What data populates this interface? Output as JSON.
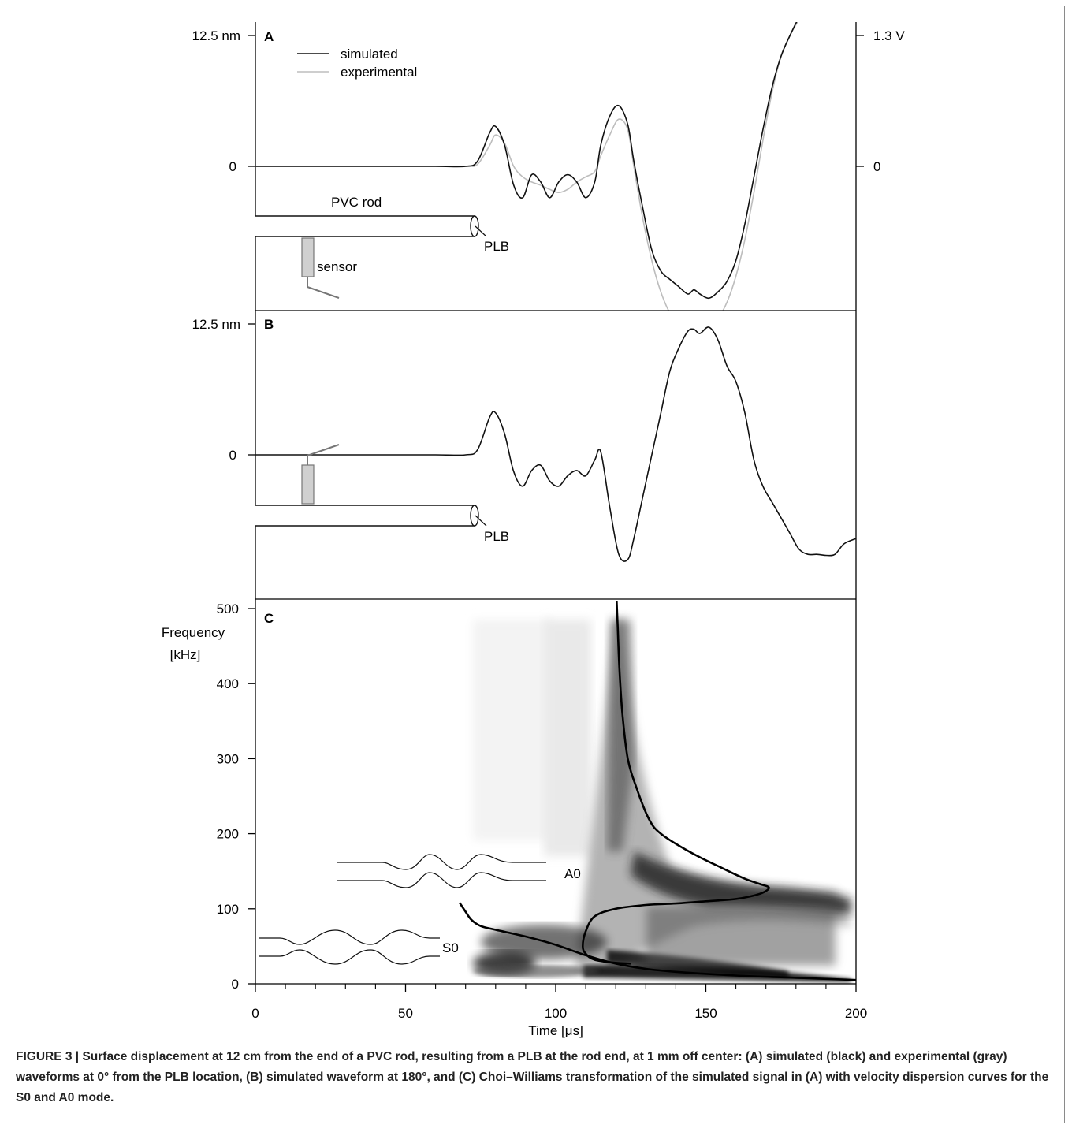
{
  "caption": {
    "label": "FIGURE 3 |",
    "text": " Surface displacement at 12 cm from the end of a PVC rod, resulting from a PLB at the rod end, at 1 mm off center: (A) simulated (black) and experimental (gray) waveforms at 0° from the PLB location, (B) simulated waveform at 180°, and (C) Choi–Williams transformation of the simulated signal in (A) with velocity dispersion curves for the S0 and A0 mode."
  },
  "colors": {
    "simulated": "#111111",
    "experimental": "#bdbdbd",
    "axis": "#000000"
  },
  "chart_data": [
    {
      "panel": "A",
      "type": "line",
      "xlim": [
        0,
        200
      ],
      "y_ticks": [
        "12.5 nm",
        "0"
      ],
      "y2_ticks": [
        "1.3 V",
        "0"
      ],
      "legend": [
        "simulated",
        "experimental"
      ],
      "legend_position": "top-left",
      "annotations": [
        "PVC rod",
        "PLB",
        "sensor"
      ],
      "series": [
        {
          "name": "simulated",
          "x": [
            0,
            20,
            40,
            60,
            70,
            74,
            78,
            80,
            83,
            86,
            89,
            92,
            95,
            98,
            101,
            104,
            107,
            110,
            113,
            115,
            118,
            121,
            124,
            126,
            129,
            132,
            135,
            138,
            141,
            144,
            146,
            148,
            151,
            154,
            157,
            160,
            163,
            166,
            169,
            172,
            175,
            178,
            181,
            184,
            187,
            190,
            193,
            196,
            200
          ],
          "y": [
            0,
            0,
            0,
            0,
            0,
            0.5,
            3.2,
            3.8,
            2.0,
            -1.8,
            -3.0,
            -0.8,
            -1.5,
            -3.0,
            -1.5,
            -0.8,
            -1.5,
            -3.0,
            -1.5,
            2.0,
            4.8,
            5.8,
            4.0,
            0.5,
            -4.0,
            -8.0,
            -10.0,
            -10.8,
            -11.5,
            -12.2,
            -11.8,
            -12.2,
            -12.6,
            -12.0,
            -11.0,
            -9.0,
            -5.5,
            -1.0,
            3.5,
            7.5,
            10.5,
            12.5,
            14.2,
            15.4,
            16.3,
            16.6,
            16.3,
            15.6,
            14.5
          ]
        },
        {
          "name": "experimental",
          "x": [
            0,
            20,
            40,
            60,
            70,
            74,
            78,
            80,
            83,
            86,
            89,
            92,
            95,
            98,
            101,
            104,
            107,
            110,
            113,
            115,
            118,
            121,
            124,
            126,
            129,
            132,
            135,
            138,
            141,
            144,
            146,
            148,
            151,
            154,
            157,
            160,
            163,
            166,
            169,
            172,
            175,
            178,
            181,
            184,
            187,
            190,
            193,
            196,
            200
          ],
          "y": [
            0,
            0,
            0,
            0,
            0,
            0.2,
            2.0,
            3.0,
            2.2,
            0,
            -1.0,
            -1.5,
            -1.8,
            -2.2,
            -2.5,
            -2.2,
            -1.5,
            -1.0,
            -0.5,
            1.0,
            3.0,
            4.5,
            3.5,
            0,
            -5.0,
            -9.0,
            -12.0,
            -14.0,
            -15.0,
            -15.5,
            -15.5,
            -15.3,
            -15.0,
            -14.5,
            -13.0,
            -10.5,
            -7.0,
            -2.5,
            2.5,
            7.0,
            10.5,
            12.5,
            14.0,
            15.2,
            16.2,
            16.6,
            16.4,
            15.8,
            14.8
          ]
        }
      ]
    },
    {
      "panel": "B",
      "type": "line",
      "xlim": [
        0,
        200
      ],
      "y_ticks": [
        "12.5 nm",
        "0"
      ],
      "annotations": [
        "PLB"
      ],
      "series": [
        {
          "x": [
            0,
            20,
            40,
            60,
            70,
            74,
            78,
            80,
            83,
            86,
            89,
            92,
            95,
            98,
            101,
            104,
            107,
            110,
            113,
            115,
            118,
            121,
            124,
            126,
            129,
            132,
            135,
            138,
            141,
            144,
            146,
            148,
            151,
            154,
            157,
            160,
            163,
            166,
            169,
            172,
            175,
            178,
            181,
            184,
            187,
            190,
            193,
            196,
            200
          ],
          "y": [
            0,
            0,
            0,
            0,
            0,
            0.5,
            3.6,
            4.0,
            2.0,
            -1.6,
            -3.0,
            -1.5,
            -1.0,
            -2.5,
            -3.0,
            -2.0,
            -1.5,
            -2.0,
            -0.5,
            0.3,
            -5.0,
            -9.5,
            -10.0,
            -8.0,
            -4.0,
            0,
            4.0,
            8.0,
            10.2,
            11.8,
            12.0,
            11.6,
            12.2,
            11.0,
            8.5,
            7.0,
            4.0,
            -0.5,
            -3.0,
            -4.5,
            -6.0,
            -7.5,
            -9.0,
            -9.5,
            -9.5,
            -9.6,
            -9.5,
            -8.5,
            -8.0
          ]
        }
      ]
    },
    {
      "panel": "C",
      "type": "heatmap",
      "xlabel": "Time [μs]",
      "ylabel": [
        "Frequency",
        "[kHz]"
      ],
      "xlim": [
        0,
        200
      ],
      "ylim": [
        0,
        500
      ],
      "x_ticks": [
        0,
        50,
        100,
        150,
        200
      ],
      "y_ticks": [
        0,
        100,
        200,
        300,
        400,
        500
      ],
      "mode_labels": [
        "A0",
        "S0"
      ],
      "series": [
        {
          "name": "S0",
          "x": [
            200,
            180,
            160,
            140,
            130,
            120,
            110,
            100,
            90,
            80,
            75,
            72,
            70,
            68
          ],
          "y": [
            5,
            8,
            11,
            16,
            20,
            27,
            38,
            52,
            63,
            72,
            77,
            85,
            96,
            108
          ]
        },
        {
          "name": "A0",
          "x": [
            120.3,
            120.6,
            121.2,
            122.2,
            124,
            127,
            131,
            135,
            145,
            155,
            163,
            168,
            171,
            168,
            160,
            150,
            140,
            130,
            120,
            113,
            110,
            109,
            110,
            113,
            120,
            125
          ],
          "y": [
            510,
            480,
            420,
            360,
            300,
            260,
            220,
            200,
            175,
            155,
            140,
            133,
            128,
            120,
            113,
            110,
            107,
            105,
            100,
            90,
            70,
            50,
            40,
            32,
            28,
            27
          ]
        }
      ]
    }
  ]
}
